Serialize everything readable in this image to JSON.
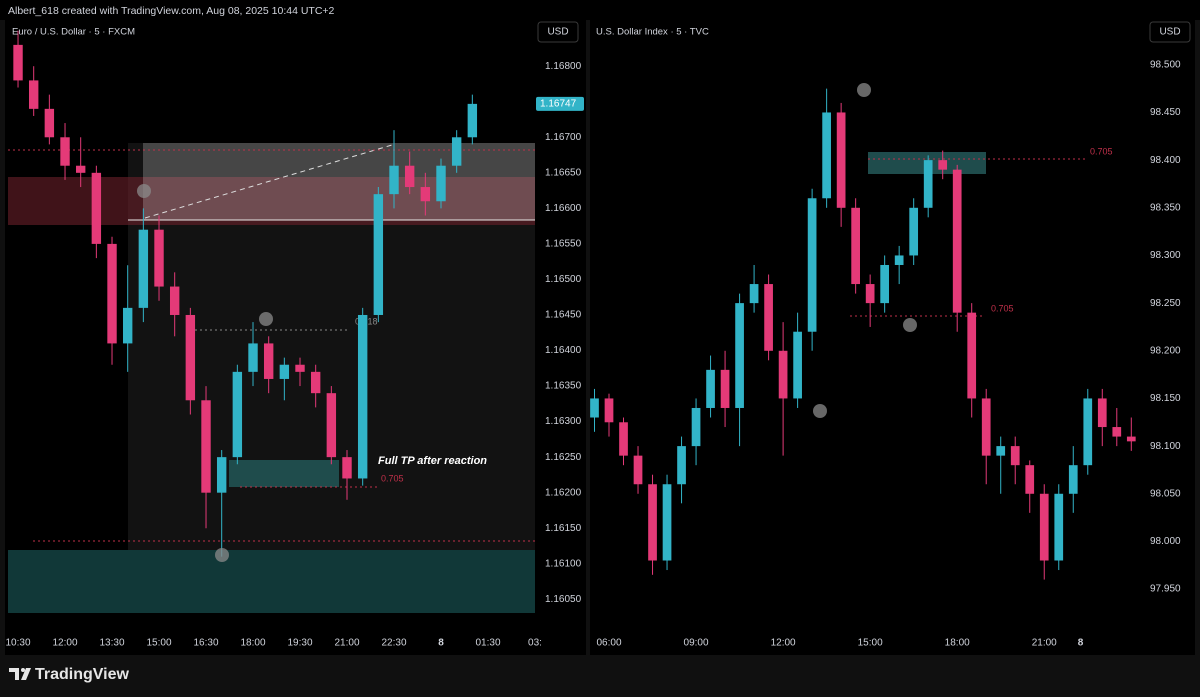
{
  "header": "Albert_618 created with TradingView.com, Aug 08, 2025 10:44 UTC+2",
  "footer": "TradingView",
  "chart_data": [
    {
      "type": "candlestick",
      "title": "Euro / U.S. Dollar · 5 · FXCM",
      "currency": "USD",
      "up_color": "#32b4c8",
      "down_color": "#e43a78",
      "grid": false,
      "last_price": 1.16747,
      "annotations": [
        "Full TP after reaction",
        "0.705",
        "0.618"
      ],
      "xlim": [
        -0.64,
        33.0
      ],
      "xticks": [
        {
          "value": 0,
          "label": "10:30"
        },
        {
          "value": 3,
          "label": "12:00"
        },
        {
          "value": 6,
          "label": "13:30"
        },
        {
          "value": 9,
          "label": "15:00"
        },
        {
          "value": 12,
          "label": "16:30"
        },
        {
          "value": 15,
          "label": "18:00"
        },
        {
          "value": 18,
          "label": "19:30"
        },
        {
          "value": 21,
          "label": "21:00"
        },
        {
          "value": 24,
          "label": "22:30"
        },
        {
          "value": 27,
          "label": "8"
        },
        {
          "value": 30,
          "label": "01:30"
        },
        {
          "value": 33,
          "label": "03:"
        }
      ],
      "ylim": [
        1.16004,
        1.16865
      ],
      "yticks": [
        {
          "value": 1.168,
          "label": "1.16800"
        },
        {
          "value": 1.1675,
          "label": "1.16750"
        },
        {
          "value": 1.167,
          "label": "1.16700"
        },
        {
          "value": 1.1665,
          "label": "1.16650"
        },
        {
          "value": 1.166,
          "label": "1.16600"
        },
        {
          "value": 1.1655,
          "label": "1.16550"
        },
        {
          "value": 1.165,
          "label": "1.16500"
        },
        {
          "value": 1.1645,
          "label": "1.16450"
        },
        {
          "value": 1.164,
          "label": "1.16400"
        },
        {
          "value": 1.1635,
          "label": "1.16350"
        },
        {
          "value": 1.163,
          "label": "1.16300"
        },
        {
          "value": 1.1625,
          "label": "1.16250"
        },
        {
          "value": 1.162,
          "label": "1.16200"
        },
        {
          "value": 1.1615,
          "label": "1.16150"
        },
        {
          "value": 1.161,
          "label": "1.16100"
        },
        {
          "value": 1.1605,
          "label": "1.16050"
        }
      ],
      "open": [
        1.1683,
        1.1678,
        1.1674,
        1.167,
        1.1666,
        1.1665,
        1.1655,
        1.1641,
        1.1646,
        1.1657,
        1.1649,
        1.1645,
        1.1633,
        1.162,
        1.1625,
        1.1637,
        1.1641,
        1.1636,
        1.1638,
        1.1637,
        1.1634,
        1.1625,
        1.1622,
        1.1645,
        1.1662,
        1.1666,
        1.1663,
        1.1661,
        1.1666,
        1.167
      ],
      "high": [
        1.1685,
        1.168,
        1.1676,
        1.1672,
        1.167,
        1.1666,
        1.1656,
        1.1652,
        1.166,
        1.1659,
        1.1651,
        1.1646,
        1.1635,
        1.1626,
        1.1638,
        1.1644,
        1.1642,
        1.1639,
        1.1639,
        1.1638,
        1.1635,
        1.1626,
        1.1646,
        1.1663,
        1.1671,
        1.1668,
        1.1665,
        1.1667,
        1.1671,
        1.1676
      ],
      "low": [
        1.1677,
        1.1673,
        1.1669,
        1.1664,
        1.1663,
        1.1653,
        1.1638,
        1.1637,
        1.1644,
        1.1647,
        1.1642,
        1.1631,
        1.1615,
        1.1611,
        1.1624,
        1.1635,
        1.1634,
        1.1633,
        1.1635,
        1.1632,
        1.1624,
        1.1619,
        1.1621,
        1.1644,
        1.166,
        1.1662,
        1.1659,
        1.166,
        1.1665,
        1.1669
      ],
      "close": [
        1.1678,
        1.1674,
        1.167,
        1.1666,
        1.1665,
        1.1655,
        1.1641,
        1.1646,
        1.1657,
        1.1649,
        1.1645,
        1.1633,
        1.162,
        1.1625,
        1.1637,
        1.1641,
        1.1636,
        1.1638,
        1.1637,
        1.1634,
        1.1625,
        1.1622,
        1.1645,
        1.1662,
        1.1666,
        1.1663,
        1.1661,
        1.1666,
        1.167,
        1.16747
      ]
    },
    {
      "type": "candlestick",
      "title": "U.S. Dollar Index · 5 · TVC",
      "currency": "USD",
      "up_color": "#32b4c8",
      "down_color": "#e43a78",
      "grid": false,
      "annotations": [
        "0.705",
        "0.705"
      ],
      "xlim": [
        -0.31,
        37.6
      ],
      "xticks": [
        {
          "value": 1,
          "label": "06:00"
        },
        {
          "value": 7,
          "label": "09:00"
        },
        {
          "value": 13,
          "label": "12:00"
        },
        {
          "value": 19,
          "label": "15:00"
        },
        {
          "value": 25,
          "label": "18:00"
        },
        {
          "value": 31,
          "label": "21:00"
        },
        {
          "value": 33.5,
          "label": "8"
        }
      ],
      "ylim": [
        97.905,
        98.547
      ],
      "yticks": [
        {
          "value": 98.5,
          "label": "98.500"
        },
        {
          "value": 98.45,
          "label": "98.450"
        },
        {
          "value": 98.4,
          "label": "98.400"
        },
        {
          "value": 98.35,
          "label": "98.350"
        },
        {
          "value": 98.3,
          "label": "98.300"
        },
        {
          "value": 98.25,
          "label": "98.250"
        },
        {
          "value": 98.2,
          "label": "98.200"
        },
        {
          "value": 98.15,
          "label": "98.150"
        },
        {
          "value": 98.1,
          "label": "98.100"
        },
        {
          "value": 98.05,
          "label": "98.050"
        },
        {
          "value": 98.0,
          "label": "98.000"
        },
        {
          "value": 97.95,
          "label": "97.950"
        }
      ],
      "open": [
        98.13,
        98.15,
        98.125,
        98.09,
        98.06,
        97.98,
        98.06,
        98.1,
        98.14,
        98.18,
        98.14,
        98.25,
        98.27,
        98.2,
        98.15,
        98.22,
        98.36,
        98.45,
        98.35,
        98.27,
        98.25,
        98.29,
        98.3,
        98.35,
        98.4,
        98.39,
        98.24,
        98.15,
        98.09,
        98.1,
        98.08,
        98.05,
        97.98,
        98.05,
        98.08,
        98.15,
        98.12,
        98.11
      ],
      "high": [
        98.16,
        98.155,
        98.13,
        98.1,
        98.07,
        98.07,
        98.11,
        98.15,
        98.195,
        98.2,
        98.26,
        98.29,
        98.28,
        98.23,
        98.24,
        98.37,
        98.475,
        98.46,
        98.36,
        98.28,
        98.3,
        98.31,
        98.36,
        98.405,
        98.41,
        98.395,
        98.25,
        98.16,
        98.11,
        98.11,
        98.085,
        98.06,
        98.06,
        98.1,
        98.16,
        98.16,
        98.14,
        98.13
      ],
      "low": [
        98.115,
        98.11,
        98.08,
        98.05,
        97.965,
        97.97,
        98.04,
        98.08,
        98.13,
        98.12,
        98.1,
        98.24,
        98.19,
        98.09,
        98.14,
        98.2,
        98.35,
        98.33,
        98.26,
        98.225,
        98.24,
        98.27,
        98.29,
        98.34,
        98.38,
        98.22,
        98.13,
        98.06,
        98.05,
        98.06,
        98.03,
        97.96,
        97.97,
        98.03,
        98.07,
        98.1,
        98.1,
        98.095
      ],
      "close": [
        98.15,
        98.125,
        98.09,
        98.06,
        97.98,
        98.06,
        98.1,
        98.14,
        98.18,
        98.14,
        98.25,
        98.27,
        98.2,
        98.15,
        98.22,
        98.36,
        98.45,
        98.35,
        98.27,
        98.25,
        98.29,
        98.3,
        98.35,
        98.4,
        98.39,
        98.24,
        98.15,
        98.09,
        98.1,
        98.08,
        98.05,
        97.98,
        98.05,
        98.08,
        98.15,
        98.12,
        98.11,
        98.105
      ]
    }
  ]
}
